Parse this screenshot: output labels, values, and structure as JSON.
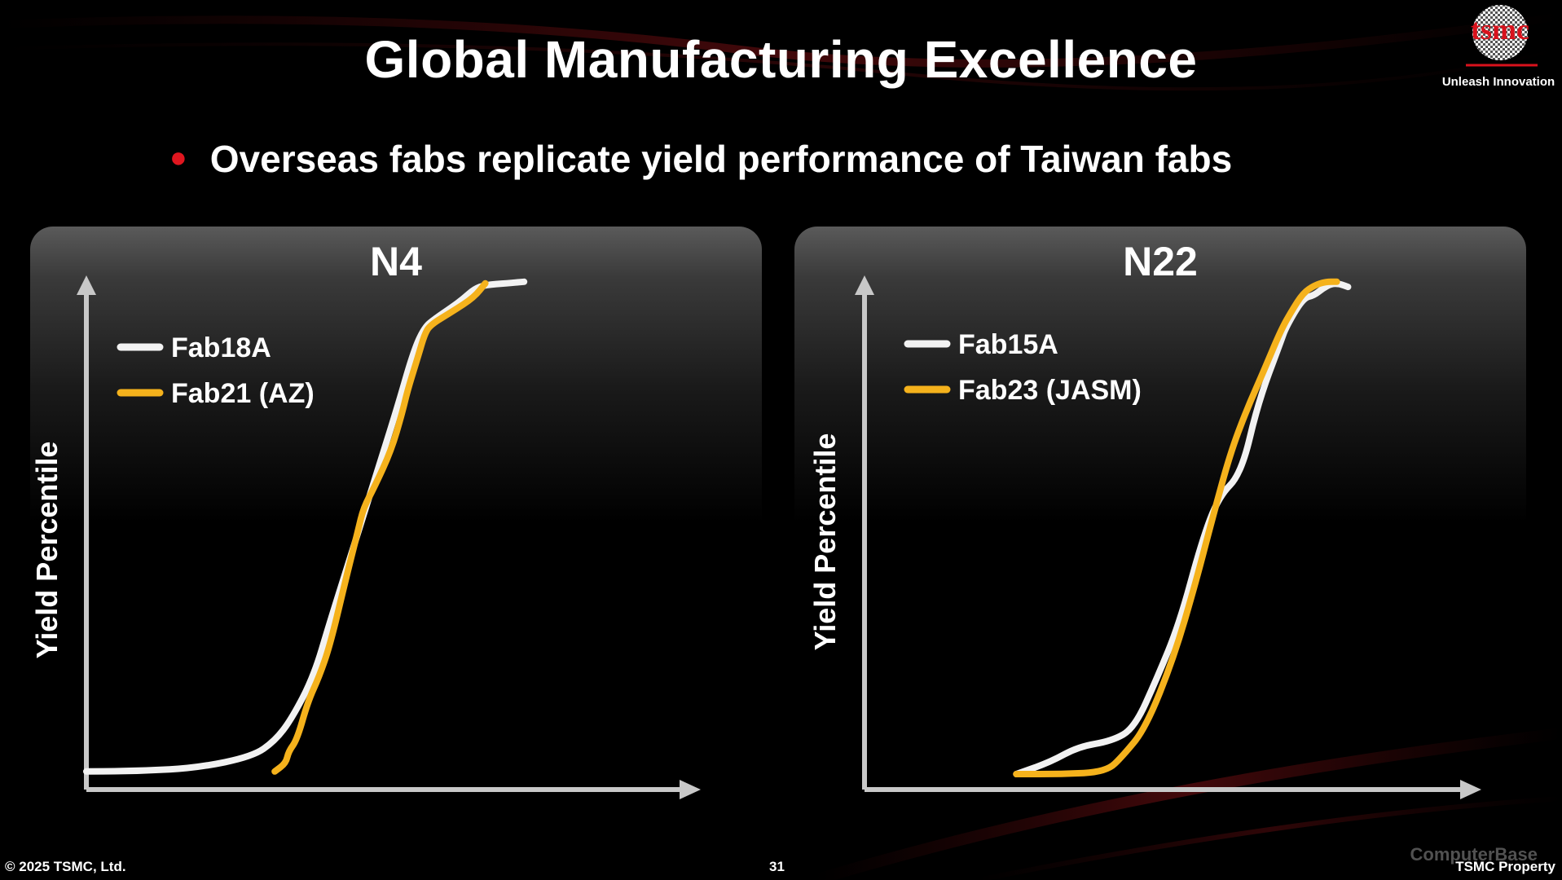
{
  "slide": {
    "title": "Global Manufacturing Excellence",
    "bullet": "Overseas fabs replicate yield performance of Taiwan fabs",
    "logo_text": "tsmc",
    "logo_tagline": "Unleash Innovation",
    "footer_copyright": "© 2025 TSMC, Ltd.",
    "page_number": "31",
    "footer_property": "TSMC Property",
    "watermark": "ComputerBase"
  },
  "colors": {
    "background": "#000000",
    "accent_red": "#e0161f",
    "series_white": "#f2f2f2",
    "series_yellow": "#f5b21c",
    "axis": "#c8c8c8"
  },
  "chart_data": [
    {
      "type": "line",
      "title": "N4",
      "ylabel": "Yield Percentile",
      "xlabel": "",
      "grid": false,
      "legend": "top-left",
      "xlim": [
        0,
        100
      ],
      "ylim": [
        0,
        100
      ],
      "series": [
        {
          "name": "Fab18A",
          "color": "#f2f2f2",
          "x": [
            0,
            10,
            20,
            30,
            34,
            37,
            41,
            44,
            48,
            52,
            56,
            59,
            61,
            63,
            66,
            68,
            70,
            72,
            76,
            79
          ],
          "y": [
            3.5,
            3.6,
            4.2,
            6.4,
            9.4,
            13.6,
            21.8,
            32.6,
            46.2,
            59.9,
            73.5,
            84.7,
            89.5,
            91.2,
            93.4,
            95.0,
            96.9,
            97.7,
            98.0,
            98.3
          ]
        },
        {
          "name": "Fab21 (AZ)",
          "color": "#f5b21c",
          "x": [
            34,
            36,
            36.5,
            38,
            40,
            42,
            44,
            47,
            49,
            50,
            52,
            55,
            57,
            58,
            60,
            61,
            62,
            66,
            70,
            72
          ],
          "y": [
            3.5,
            5.1,
            7.4,
            9.6,
            17.1,
            21.8,
            28.0,
            41.5,
            50.0,
            54.5,
            58.6,
            65.6,
            72.9,
            77.4,
            84.3,
            88.0,
            89.9,
            92.5,
            95.3,
            98.0
          ]
        }
      ]
    },
    {
      "type": "line",
      "title": "N22",
      "ylabel": "Yield Percentile",
      "xlabel": "",
      "grid": false,
      "legend": "top-left",
      "xlim": [
        0,
        100
      ],
      "ylim": [
        0,
        100
      ],
      "series": [
        {
          "name": "Fab15A",
          "color": "#f2f2f2",
          "x": [
            27,
            33,
            38,
            44,
            48,
            52,
            56,
            60,
            63,
            67,
            70,
            74,
            75,
            78,
            80,
            81.5,
            83,
            84.5,
            86
          ],
          "y": [
            3.0,
            5.3,
            8.3,
            9.4,
            11.9,
            21.5,
            32.1,
            48.1,
            56.7,
            61.1,
            74.9,
            86.6,
            89.6,
            95.1,
            95.7,
            97.0,
            97.9,
            97.9,
            97.3
          ]
        },
        {
          "name": "Fab23 (JASM)",
          "color": "#f5b21c",
          "x": [
            27,
            35,
            43,
            46,
            50,
            55,
            59,
            62,
            65,
            68,
            71,
            74,
            76,
            78,
            80,
            82,
            84
          ],
          "y": [
            3.0,
            3.0,
            3.4,
            6.6,
            11.9,
            25.5,
            40.4,
            53.0,
            64.9,
            73.6,
            81.0,
            88.8,
            92.7,
            96.1,
            97.6,
            98.3,
            98.3
          ]
        }
      ]
    }
  ]
}
